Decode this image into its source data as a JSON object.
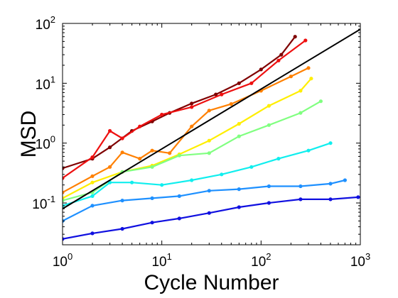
{
  "chart_data": {
    "type": "line",
    "title": "",
    "xlabel": "Cycle Number",
    "ylabel": "MSD",
    "xscale": "log",
    "yscale": "log",
    "xlim": [
      1,
      1000
    ],
    "ylim": [
      0.02,
      100
    ],
    "grid": false,
    "legend": "none",
    "x_ticks": [
      {
        "base": "10",
        "exp": "0",
        "value": 1
      },
      {
        "base": "10",
        "exp": "1",
        "value": 10
      },
      {
        "base": "10",
        "exp": "2",
        "value": 100
      },
      {
        "base": "10",
        "exp": "3",
        "value": 1000
      }
    ],
    "y_ticks": [
      {
        "base": "10",
        "exp": "-1",
        "value": 0.1
      },
      {
        "base": "10",
        "exp": "0",
        "value": 1
      },
      {
        "base": "10",
        "exp": "1",
        "value": 10
      },
      {
        "base": "10",
        "exp": "2",
        "value": 100
      }
    ],
    "series": [
      {
        "color": "#7f0000",
        "x": [
          1,
          2,
          3,
          5,
          8,
          12,
          20,
          35,
          60,
          100,
          160,
          220
        ],
        "y": [
          0.38,
          0.55,
          0.85,
          1.6,
          2.3,
          3.2,
          4.6,
          6.5,
          10,
          17,
          30,
          60
        ]
      },
      {
        "color": "#ee1010",
        "x": [
          1,
          2,
          3,
          4,
          6,
          10,
          20,
          40,
          80,
          150,
          280
        ],
        "y": [
          0.26,
          0.58,
          1.6,
          1.2,
          1.9,
          3.0,
          4.0,
          6.5,
          10,
          24,
          52
        ]
      },
      {
        "color": "#ff8000",
        "x": [
          1,
          2,
          3,
          4,
          6,
          8,
          12,
          20,
          30,
          50,
          100,
          200,
          300
        ],
        "y": [
          0.15,
          0.28,
          0.4,
          0.7,
          0.55,
          0.75,
          0.68,
          1.9,
          3.5,
          4.5,
          7.5,
          13,
          18
        ]
      },
      {
        "color": "#ffee00",
        "x": [
          1,
          2,
          4,
          8,
          15,
          30,
          60,
          120,
          250,
          320
        ],
        "y": [
          0.12,
          0.22,
          0.33,
          0.42,
          0.65,
          1.1,
          2.1,
          4.2,
          7.5,
          12
        ]
      },
      {
        "color": "#80ff80",
        "x": [
          1,
          2,
          4,
          8,
          15,
          30,
          60,
          120,
          250,
          400
        ],
        "y": [
          0.11,
          0.15,
          0.33,
          0.4,
          0.62,
          0.68,
          1.3,
          2.0,
          3.2,
          5.0
        ]
      },
      {
        "color": "#10eeee",
        "x": [
          1,
          2,
          3,
          5,
          10,
          20,
          40,
          80,
          150,
          300,
          500
        ],
        "y": [
          0.09,
          0.13,
          0.22,
          0.22,
          0.2,
          0.24,
          0.3,
          0.4,
          0.55,
          0.75,
          1.0
        ]
      },
      {
        "color": "#1e90ff",
        "x": [
          1,
          2,
          4,
          8,
          15,
          30,
          60,
          120,
          250,
          500,
          700
        ],
        "y": [
          0.05,
          0.09,
          0.11,
          0.12,
          0.13,
          0.16,
          0.17,
          0.19,
          0.19,
          0.21,
          0.24
        ]
      },
      {
        "color": "#1010e0",
        "x": [
          1,
          2,
          4,
          8,
          15,
          30,
          60,
          120,
          250,
          500,
          950
        ],
        "y": [
          0.025,
          0.031,
          0.037,
          0.047,
          0.055,
          0.068,
          0.085,
          0.1,
          0.115,
          0.115,
          0.125
        ]
      }
    ],
    "reference_line": {
      "color": "#000000",
      "x": [
        1,
        1000
      ],
      "y": [
        0.08,
        80
      ]
    }
  }
}
